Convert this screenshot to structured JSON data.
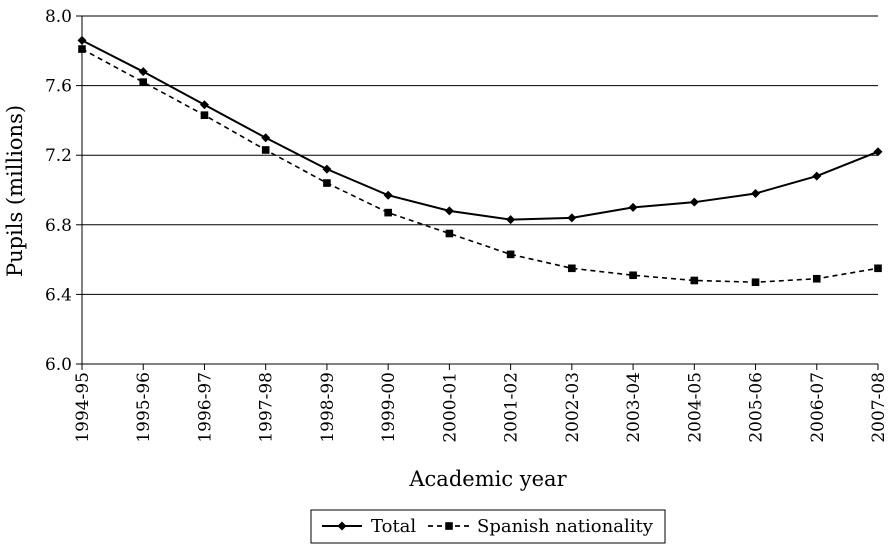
{
  "chart_data": {
    "type": "line",
    "title": "",
    "xlabel": "Academic year",
    "ylabel": "Pupils (millions)",
    "categories": [
      "1994-95",
      "1995-96",
      "1996-97",
      "1997-98",
      "1998-99",
      "1999-00",
      "2000-01",
      "2001-02",
      "2002-03",
      "2003-04",
      "2004-05",
      "2005-06",
      "2006-07",
      "2007-08"
    ],
    "ylim": [
      6.0,
      8.0
    ],
    "yticks": [
      "6.0",
      "6.4",
      "6.8",
      "7.2",
      "7.6",
      "8.0"
    ],
    "grid": "horizontal",
    "legend_position": "bottom",
    "series": [
      {
        "name": "Total",
        "style": "solid",
        "marker": "diamond",
        "color": "#000000",
        "values": [
          7.86,
          7.68,
          7.49,
          7.3,
          7.12,
          6.97,
          6.88,
          6.83,
          6.84,
          6.9,
          6.93,
          6.98,
          7.08,
          7.22
        ]
      },
      {
        "name": "Spanish nationality",
        "style": "dashed",
        "marker": "square",
        "color": "#000000",
        "values": [
          7.81,
          7.62,
          7.43,
          7.23,
          7.04,
          6.87,
          6.75,
          6.63,
          6.55,
          6.51,
          6.48,
          6.47,
          6.49,
          6.55
        ]
      }
    ]
  }
}
